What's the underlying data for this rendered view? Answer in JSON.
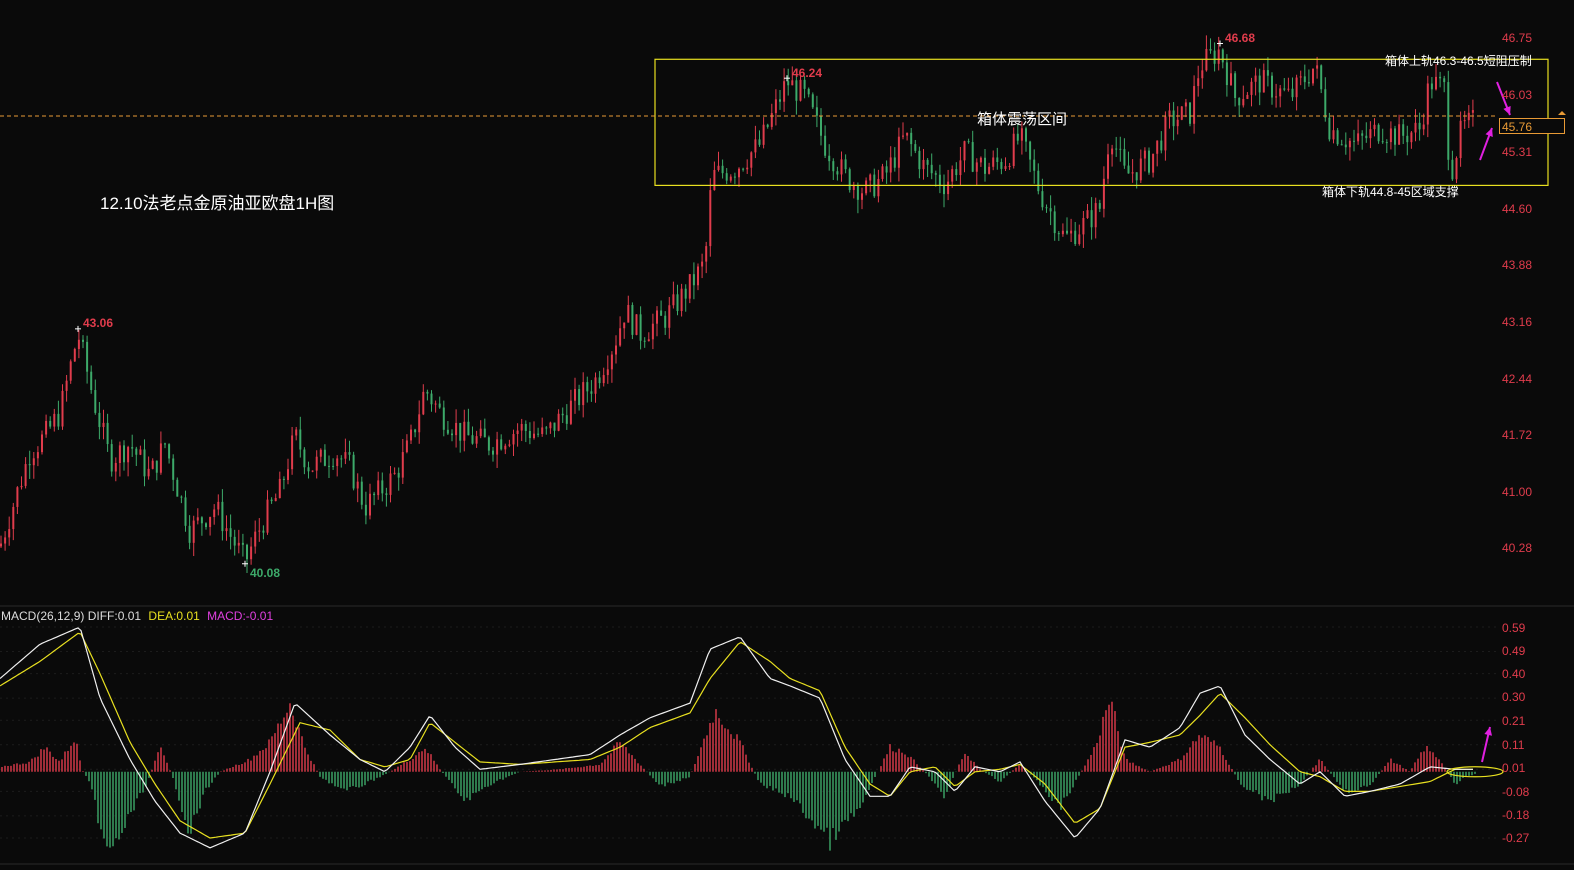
{
  "title": "12.10法老点金原油亚欧盘1H图",
  "box_label": "箱体震荡区间",
  "note_upper": "箱体上轨46.3-46.5短阻压制",
  "note_lower": "箱体下轨44.8-45区域支撑",
  "current_price": "45.76",
  "colors": {
    "up": "#e03c4c",
    "down": "#3daa6a",
    "box": "#e8e020",
    "diff": "#f0f0f0",
    "dea": "#e8e020",
    "macd": "#e040e0",
    "arrow": "#e020e0",
    "current": "#e89a35",
    "background": "#0a0a0a"
  },
  "chart_data": [
    {
      "type": "candlestick",
      "timeframe": "1H",
      "ylim": [
        39.9,
        46.95
      ],
      "y_ticks": [
        "46.75",
        "46.03",
        "45.31",
        "44.60",
        "43.88",
        "43.16",
        "42.44",
        "41.72",
        "41.00",
        "40.28"
      ],
      "annotations": [
        {
          "label": "43.06",
          "index": 78,
          "price": 43.06,
          "kind": "high"
        },
        {
          "label": "40.08",
          "index": 245,
          "price": 40.08,
          "kind": "low"
        },
        {
          "label": "46.24",
          "index": 787,
          "price": 46.24,
          "kind": "high"
        },
        {
          "label": "46.68",
          "index": 1220,
          "price": 46.68,
          "kind": "high"
        }
      ],
      "box": {
        "upper": 46.48,
        "lower": 44.88,
        "from_index": 655,
        "to_index": 1548
      },
      "current_price": 45.76,
      "path": [
        [
          0,
          40.3
        ],
        [
          30,
          41.5
        ],
        [
          45,
          41.7
        ],
        [
          60,
          42.0
        ],
        [
          78,
          43.0
        ],
        [
          95,
          42.1
        ],
        [
          110,
          41.4
        ],
        [
          130,
          41.6
        ],
        [
          150,
          41.2
        ],
        [
          165,
          41.6
        ],
        [
          190,
          40.5
        ],
        [
          215,
          40.8
        ],
        [
          245,
          40.1
        ],
        [
          262,
          40.6
        ],
        [
          280,
          41.0
        ],
        [
          295,
          41.7
        ],
        [
          310,
          41.3
        ],
        [
          335,
          41.5
        ],
        [
          350,
          41.3
        ],
        [
          365,
          40.8
        ],
        [
          395,
          41.2
        ],
        [
          410,
          41.6
        ],
        [
          425,
          42.3
        ],
        [
          440,
          42.0
        ],
        [
          465,
          41.7
        ],
        [
          490,
          41.6
        ],
        [
          520,
          41.8
        ],
        [
          545,
          41.7
        ],
        [
          565,
          42.0
        ],
        [
          595,
          42.4
        ],
        [
          615,
          42.9
        ],
        [
          625,
          43.3
        ],
        [
          640,
          43.0
        ],
        [
          665,
          43.2
        ],
        [
          690,
          43.6
        ],
        [
          705,
          43.9
        ],
        [
          712,
          45.0
        ],
        [
          735,
          45.1
        ],
        [
          760,
          45.4
        ],
        [
          787,
          46.2
        ],
        [
          805,
          46.0
        ],
        [
          825,
          45.4
        ],
        [
          845,
          45.0
        ],
        [
          865,
          44.8
        ],
        [
          885,
          45.0
        ],
        [
          905,
          45.5
        ],
        [
          925,
          45.1
        ],
        [
          945,
          44.9
        ],
        [
          965,
          45.3
        ],
        [
          985,
          45.1
        ],
        [
          1005,
          45.2
        ],
        [
          1020,
          45.5
        ],
        [
          1040,
          44.8
        ],
        [
          1065,
          44.2
        ],
        [
          1085,
          44.4
        ],
        [
          1100,
          44.6
        ],
        [
          1110,
          45.6
        ],
        [
          1125,
          45.0
        ],
        [
          1150,
          45.2
        ],
        [
          1170,
          45.7
        ],
        [
          1190,
          45.8
        ],
        [
          1200,
          46.4
        ],
        [
          1220,
          46.6
        ],
        [
          1235,
          46.0
        ],
        [
          1260,
          46.2
        ],
        [
          1290,
          46.0
        ],
        [
          1315,
          46.4
        ],
        [
          1330,
          45.6
        ],
        [
          1355,
          45.4
        ],
        [
          1380,
          45.6
        ],
        [
          1400,
          45.5
        ],
        [
          1420,
          45.6
        ],
        [
          1430,
          46.2
        ],
        [
          1445,
          46.1
        ],
        [
          1450,
          45.0
        ],
        [
          1462,
          45.6
        ],
        [
          1475,
          45.7
        ]
      ]
    },
    {
      "type": "macd",
      "name": "MACD(26,12,9)",
      "legend": {
        "name": "MACD(26,12,9)",
        "diff": "DIFF:0.01",
        "dea": "DEA:0.01",
        "macd": "MACD:-0.01"
      },
      "ylim": [
        -0.33,
        0.62
      ],
      "y_ticks": [
        "0.59",
        "0.49",
        "0.40",
        "0.30",
        "0.21",
        "0.11",
        "0.01",
        "-0.08",
        "-0.18",
        "-0.27"
      ],
      "dea": [
        [
          0,
          0.35
        ],
        [
          40,
          0.45
        ],
        [
          80,
          0.57
        ],
        [
          100,
          0.4
        ],
        [
          130,
          0.12
        ],
        [
          155,
          -0.05
        ],
        [
          180,
          -0.2
        ],
        [
          210,
          -0.27
        ],
        [
          245,
          -0.25
        ],
        [
          270,
          -0.05
        ],
        [
          300,
          0.2
        ],
        [
          330,
          0.17
        ],
        [
          360,
          0.05
        ],
        [
          385,
          0.02
        ],
        [
          410,
          0.05
        ],
        [
          430,
          0.2
        ],
        [
          455,
          0.12
        ],
        [
          480,
          0.04
        ],
        [
          520,
          0.03
        ],
        [
          555,
          0.04
        ],
        [
          590,
          0.05
        ],
        [
          620,
          0.1
        ],
        [
          650,
          0.18
        ],
        [
          690,
          0.24
        ],
        [
          710,
          0.38
        ],
        [
          740,
          0.53
        ],
        [
          770,
          0.45
        ],
        [
          790,
          0.38
        ],
        [
          820,
          0.33
        ],
        [
          845,
          0.1
        ],
        [
          870,
          -0.05
        ],
        [
          890,
          -0.1
        ],
        [
          910,
          0.0
        ],
        [
          935,
          0.02
        ],
        [
          955,
          -0.06
        ],
        [
          975,
          0.0
        ],
        [
          1000,
          0.01
        ],
        [
          1020,
          0.03
        ],
        [
          1045,
          -0.05
        ],
        [
          1075,
          -0.21
        ],
        [
          1100,
          -0.15
        ],
        [
          1125,
          0.1
        ],
        [
          1150,
          0.12
        ],
        [
          1180,
          0.15
        ],
        [
          1200,
          0.23
        ],
        [
          1220,
          0.32
        ],
        [
          1245,
          0.22
        ],
        [
          1270,
          0.11
        ],
        [
          1300,
          0.0
        ],
        [
          1320,
          -0.02
        ],
        [
          1345,
          -0.08
        ],
        [
          1370,
          -0.08
        ],
        [
          1400,
          -0.06
        ],
        [
          1430,
          -0.04
        ],
        [
          1455,
          0.01
        ],
        [
          1475,
          0.01
        ]
      ],
      "diff": [
        [
          0,
          0.38
        ],
        [
          40,
          0.52
        ],
        [
          80,
          0.59
        ],
        [
          100,
          0.3
        ],
        [
          130,
          0.05
        ],
        [
          155,
          -0.12
        ],
        [
          180,
          -0.25
        ],
        [
          210,
          -0.31
        ],
        [
          245,
          -0.25
        ],
        [
          270,
          0.0
        ],
        [
          295,
          0.28
        ],
        [
          330,
          0.15
        ],
        [
          360,
          0.05
        ],
        [
          385,
          0.0
        ],
        [
          410,
          0.1
        ],
        [
          430,
          0.23
        ],
        [
          455,
          0.1
        ],
        [
          480,
          0.01
        ],
        [
          520,
          0.03
        ],
        [
          555,
          0.05
        ],
        [
          590,
          0.07
        ],
        [
          620,
          0.15
        ],
        [
          650,
          0.22
        ],
        [
          690,
          0.28
        ],
        [
          710,
          0.5
        ],
        [
          740,
          0.55
        ],
        [
          770,
          0.38
        ],
        [
          790,
          0.35
        ],
        [
          820,
          0.3
        ],
        [
          845,
          0.05
        ],
        [
          870,
          -0.1
        ],
        [
          890,
          -0.1
        ],
        [
          910,
          0.02
        ],
        [
          935,
          0.0
        ],
        [
          955,
          -0.08
        ],
        [
          975,
          0.02
        ],
        [
          1000,
          0.0
        ],
        [
          1020,
          0.04
        ],
        [
          1045,
          -0.12
        ],
        [
          1075,
          -0.27
        ],
        [
          1100,
          -0.15
        ],
        [
          1125,
          0.13
        ],
        [
          1150,
          0.1
        ],
        [
          1180,
          0.18
        ],
        [
          1200,
          0.32
        ],
        [
          1220,
          0.35
        ],
        [
          1245,
          0.15
        ],
        [
          1270,
          0.05
        ],
        [
          1300,
          -0.05
        ],
        [
          1320,
          0.0
        ],
        [
          1345,
          -0.1
        ],
        [
          1370,
          -0.08
        ],
        [
          1400,
          -0.05
        ],
        [
          1430,
          0.02
        ],
        [
          1455,
          0.01
        ],
        [
          1475,
          0.01
        ]
      ],
      "hist": [
        [
          0,
          0.02
        ],
        [
          30,
          0.04
        ],
        [
          45,
          0.1
        ],
        [
          60,
          0.04
        ],
        [
          75,
          0.14
        ],
        [
          82,
          0.01
        ],
        [
          90,
          -0.05
        ],
        [
          108,
          -0.35
        ],
        [
          130,
          -0.18
        ],
        [
          150,
          -0.02
        ],
        [
          160,
          0.12
        ],
        [
          175,
          -0.05
        ],
        [
          190,
          -0.25
        ],
        [
          205,
          -0.08
        ],
        [
          220,
          0.0
        ],
        [
          250,
          0.05
        ],
        [
          270,
          0.12
        ],
        [
          290,
          0.28
        ],
        [
          305,
          0.1
        ],
        [
          320,
          -0.02
        ],
        [
          345,
          -0.08
        ],
        [
          365,
          -0.05
        ],
        [
          390,
          0.0
        ],
        [
          410,
          0.05
        ],
        [
          425,
          0.1
        ],
        [
          440,
          0.01
        ],
        [
          465,
          -0.12
        ],
        [
          490,
          -0.05
        ],
        [
          520,
          0.0
        ],
        [
          560,
          0.01
        ],
        [
          600,
          0.03
        ],
        [
          620,
          0.12
        ],
        [
          640,
          0.03
        ],
        [
          660,
          -0.06
        ],
        [
          690,
          -0.02
        ],
        [
          715,
          0.25
        ],
        [
          740,
          0.12
        ],
        [
          760,
          -0.05
        ],
        [
          790,
          -0.1
        ],
        [
          830,
          -0.28
        ],
        [
          860,
          -0.15
        ],
        [
          890,
          0.1
        ],
        [
          905,
          0.08
        ],
        [
          925,
          0.0
        ],
        [
          945,
          -0.1
        ],
        [
          965,
          0.08
        ],
        [
          980,
          0.01
        ],
        [
          1000,
          -0.04
        ],
        [
          1020,
          0.03
        ],
        [
          1040,
          -0.05
        ],
        [
          1060,
          -0.15
        ],
        [
          1080,
          -0.01
        ],
        [
          1095,
          0.1
        ],
        [
          1110,
          0.3
        ],
        [
          1125,
          0.05
        ],
        [
          1150,
          0.0
        ],
        [
          1180,
          0.05
        ],
        [
          1200,
          0.15
        ],
        [
          1220,
          0.1
        ],
        [
          1240,
          -0.05
        ],
        [
          1270,
          -0.12
        ],
        [
          1300,
          -0.05
        ],
        [
          1320,
          0.05
        ],
        [
          1345,
          -0.08
        ],
        [
          1370,
          -0.06
        ],
        [
          1390,
          0.05
        ],
        [
          1410,
          0.0
        ],
        [
          1425,
          0.1
        ],
        [
          1440,
          0.05
        ],
        [
          1455,
          -0.05
        ],
        [
          1465,
          -0.02
        ],
        [
          1475,
          -0.01
        ]
      ]
    }
  ]
}
